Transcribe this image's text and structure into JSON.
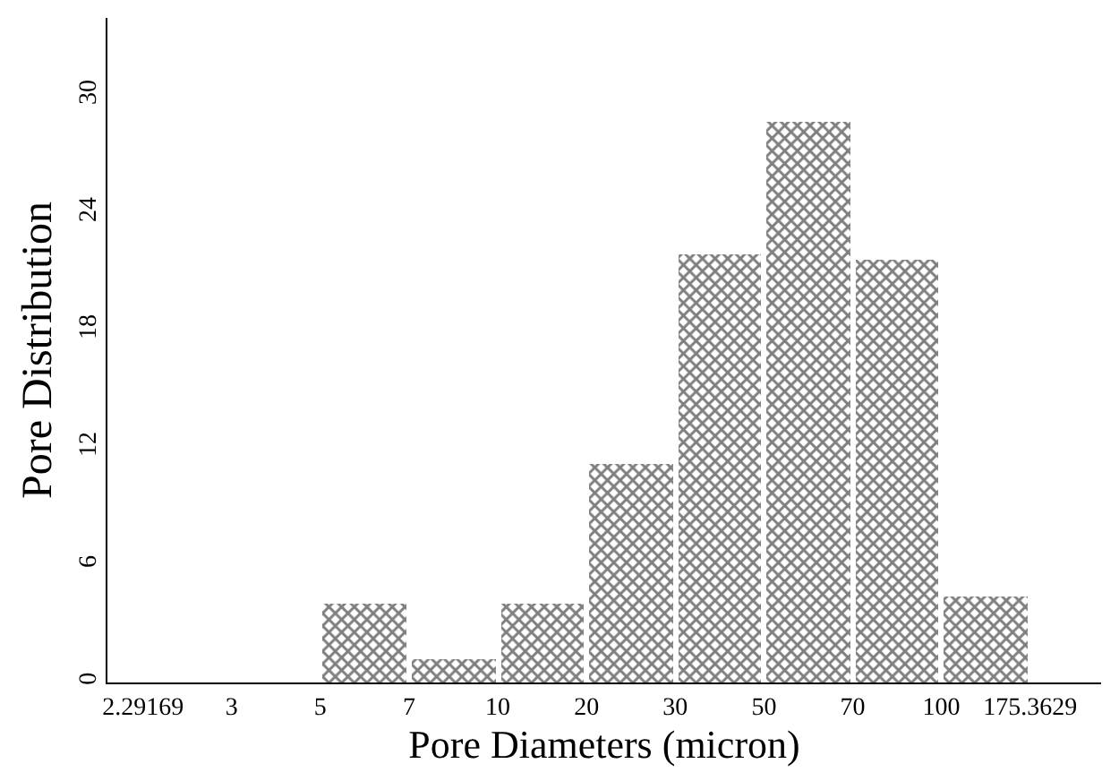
{
  "chart_data": {
    "type": "bar",
    "xlabel": "Pore Diameters (micron)",
    "ylabel": "Pore Distribution",
    "categories": [
      "2.29169",
      "3",
      "5",
      "7",
      "10",
      "20",
      "30",
      "50",
      "70",
      "100",
      "175.3629"
    ],
    "values": [
      0,
      0,
      4,
      1.2,
      4,
      11.2,
      21.9,
      28.7,
      21.6,
      4.4,
      null
    ],
    "color": "#000000",
    "ylim": [
      0,
      34
    ],
    "yticks": [
      0,
      6,
      12,
      18,
      24,
      30
    ]
  }
}
